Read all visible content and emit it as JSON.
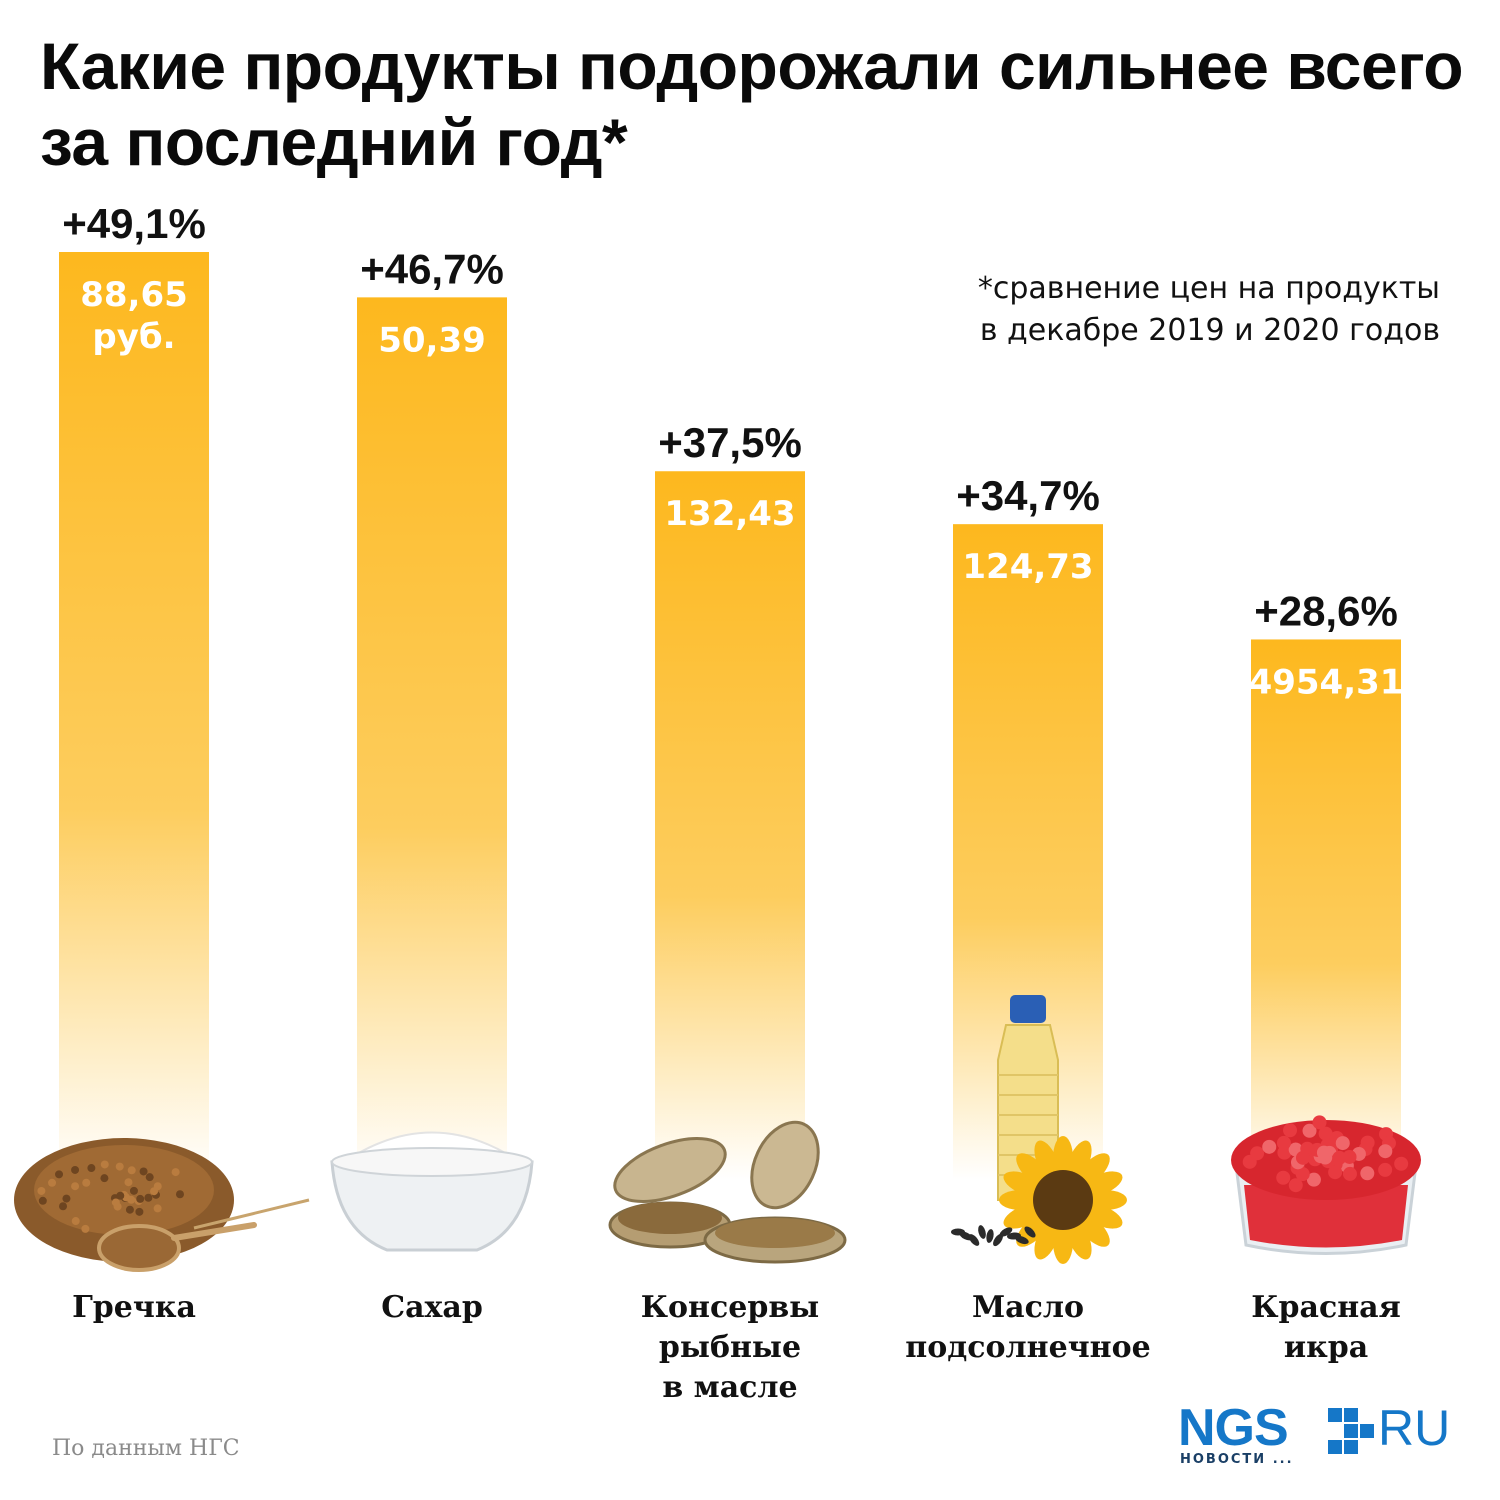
{
  "title": "Какие продукты подорожали сильнее всего за последний год*",
  "note": {
    "line1": "*сравнение цен на продукты",
    "line2": "в декабре 2019 и 2020 годов"
  },
  "source": "По данным НГС",
  "logo": {
    "main": "NGS",
    "suffix": "RU",
    "sub": "НОВОСТИ ..."
  },
  "colors": {
    "bar_top": "#FDB81E",
    "bar_bottom": "#FFFFFF",
    "text_dark": "#111111",
    "text_light": "#FFFFFF",
    "brand": "#1577C8"
  },
  "chart_data": {
    "type": "bar",
    "categories": [
      "Гречка",
      "Сахар",
      "Консервы рыбные в масле",
      "Масло подсолнечное",
      "Красная икра"
    ],
    "category_lines": [
      [
        "Гречка"
      ],
      [
        "Сахар"
      ],
      [
        "Консервы рыбные",
        "в масле"
      ],
      [
        "Масло",
        "подсолнечное"
      ],
      [
        "Красная",
        "икра"
      ]
    ],
    "values": [
      49.1,
      46.7,
      37.5,
      34.7,
      28.6
    ],
    "value_labels": [
      "+49,1%",
      "+46,7%",
      "+37,5%",
      "+34,7%",
      "+28,6%"
    ],
    "price_labels": [
      [
        "88,65",
        "руб."
      ],
      [
        "50,39"
      ],
      [
        "132,43"
      ],
      [
        "124,73"
      ],
      [
        "4954,31"
      ]
    ],
    "icons": [
      "buckwheat-icon",
      "sugar-bowl-icon",
      "canned-fish-icon",
      "sunflower-oil-icon",
      "red-caviar-icon"
    ],
    "unit": "%",
    "ylim": [
      0,
      49.1
    ],
    "grid": false,
    "legend": "none"
  }
}
